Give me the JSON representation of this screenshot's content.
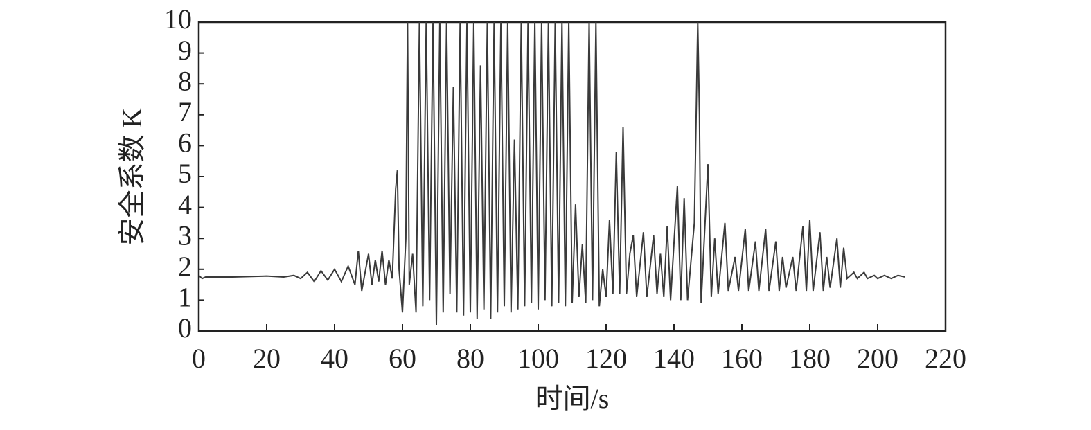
{
  "chart_data": {
    "type": "line",
    "x_label": "时间/s",
    "y_label": "安全系数 K",
    "x": [
      0,
      1,
      2,
      10,
      20,
      25,
      28,
      30,
      32,
      34,
      36,
      38,
      40,
      42,
      44,
      46,
      47,
      48,
      50,
      51,
      52,
      53,
      54,
      55,
      56,
      57,
      58,
      58.5,
      59,
      60,
      61,
      61.5,
      62,
      63,
      64,
      65,
      66,
      67,
      68,
      69,
      70,
      71,
      72,
      73,
      74,
      75,
      76,
      77,
      78,
      79,
      80,
      81,
      82,
      83,
      84,
      85,
      86,
      87,
      88,
      89,
      90,
      91,
      92,
      93,
      94,
      95,
      96,
      97,
      98,
      99,
      100,
      101,
      102,
      103,
      104,
      105,
      106,
      107,
      108,
      109,
      110,
      111,
      112,
      113,
      114,
      115,
      116,
      117,
      118,
      119,
      120,
      121,
      122,
      123,
      124,
      125,
      126,
      127,
      128,
      129,
      131,
      132,
      134,
      135,
      136,
      137,
      138,
      139,
      141,
      142,
      143,
      144,
      146,
      147,
      147.5,
      148,
      150,
      151,
      152,
      153,
      155,
      156,
      158,
      159,
      161,
      162,
      164,
      165,
      167,
      168,
      170,
      171,
      172,
      173,
      175,
      176,
      178,
      179,
      180,
      181,
      183,
      184,
      185,
      186,
      188,
      189,
      190,
      191,
      193,
      194,
      196,
      197,
      199,
      200,
      202,
      204,
      206,
      208
    ],
    "series": [
      {
        "color": "#3a3a3a",
        "values": [
          1.8,
          1.7,
          1.75,
          1.75,
          1.78,
          1.75,
          1.8,
          1.7,
          1.9,
          1.6,
          1.95,
          1.65,
          2.0,
          1.6,
          2.1,
          1.5,
          2.6,
          1.3,
          2.5,
          1.5,
          2.3,
          1.6,
          2.6,
          1.5,
          2.3,
          1.7,
          4.6,
          5.2,
          2.0,
          0.6,
          3.0,
          10,
          1.5,
          2.5,
          0.6,
          10,
          0.8,
          10,
          1.0,
          10,
          0.2,
          10,
          0.6,
          10,
          1.2,
          7.9,
          0.6,
          10,
          0.5,
          10,
          0.6,
          10,
          0.4,
          8.6,
          0.7,
          10,
          0.4,
          10,
          0.6,
          10,
          0.8,
          10,
          0.6,
          6.2,
          0.7,
          10,
          0.8,
          10,
          0.9,
          10,
          0.7,
          10,
          1.0,
          10,
          0.8,
          10,
          0.9,
          10,
          0.8,
          10,
          0.9,
          4.1,
          1.1,
          2.8,
          0.9,
          10,
          1.0,
          10,
          0.8,
          2.0,
          1.1,
          3.6,
          1.2,
          5.8,
          1.2,
          6.6,
          1.2,
          2.5,
          3.1,
          1.1,
          3.2,
          1.1,
          3.1,
          1.2,
          2.5,
          1.1,
          3.4,
          1.0,
          4.7,
          1.0,
          4.3,
          1.0,
          3.5,
          10,
          7,
          0.9,
          5.4,
          1.1,
          3.0,
          1.2,
          3.5,
          1.3,
          2.4,
          1.3,
          3.3,
          1.3,
          2.9,
          1.3,
          3.3,
          1.3,
          2.9,
          1.3,
          2.4,
          1.4,
          2.4,
          1.3,
          3.4,
          1.3,
          3.6,
          1.3,
          3.2,
          1.3,
          2.4,
          1.4,
          3.0,
          1.4,
          2.7,
          1.7,
          1.9,
          1.7,
          1.9,
          1.7,
          1.8,
          1.7,
          1.8,
          1.7,
          1.8,
          1.75
        ]
      }
    ],
    "xlim": [
      0,
      220
    ],
    "ylim": [
      0,
      10
    ],
    "xticks": [
      0,
      20,
      40,
      60,
      80,
      100,
      120,
      140,
      160,
      180,
      200,
      220
    ],
    "yticks": [
      0,
      1,
      2,
      3,
      4,
      5,
      6,
      7,
      8,
      9,
      10
    ]
  }
}
